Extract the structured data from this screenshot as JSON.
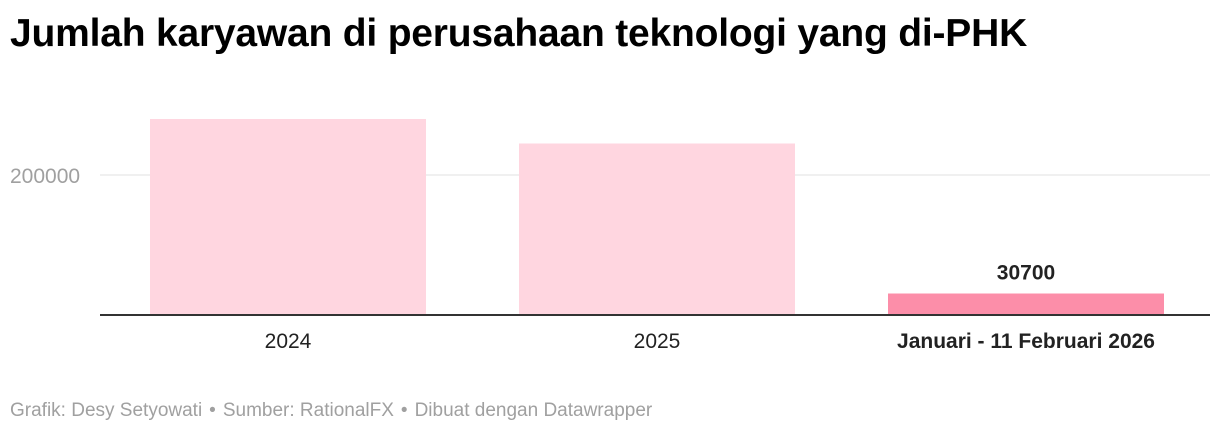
{
  "chart_data": {
    "type": "bar",
    "title": "Jumlah karyawan di perusahaan teknologi yang di-PHK",
    "xlabel": "",
    "ylabel": "",
    "categories": [
      "2024",
      "2025",
      "Januari - 11 Februari 2026"
    ],
    "values": [
      280000,
      245000,
      30700
    ],
    "data_labels": [
      "",
      "",
      "30700"
    ],
    "y_ticks": [
      200000
    ],
    "y_tick_labels": [
      "200000"
    ],
    "ylim": [
      0,
      280000
    ],
    "grid": true,
    "legend": "none",
    "highlight_index": 2,
    "colors": {
      "bar": "#ffd6e0",
      "bar_highlight": "#fc8ea9",
      "gridline": "#e0e0e0",
      "axis": "#333333",
      "tick_label": "#a0a0a0"
    }
  },
  "footer": {
    "credit": "Grafik: Desy Setyowati",
    "source": "Sumber: RationalFX",
    "tool": "Dibuat dengan Datawrapper",
    "separator": "•"
  }
}
